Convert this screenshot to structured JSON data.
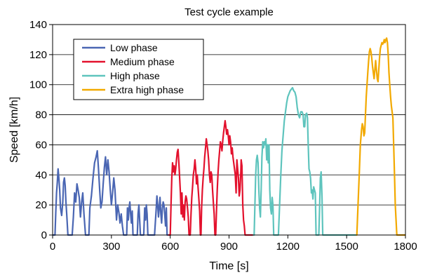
{
  "chart_data": {
    "type": "line",
    "title": "Test cycle example",
    "xlabel": "Time [s]",
    "ylabel": "Speed [km/h]",
    "xlim": [
      0,
      1800
    ],
    "ylim": [
      0,
      140
    ],
    "xticks": [
      0,
      300,
      600,
      900,
      1200,
      1500,
      1800
    ],
    "yticks": [
      0,
      20,
      40,
      60,
      80,
      100,
      120,
      140
    ],
    "grid": "horizontal",
    "legend_position": "top-left",
    "series": [
      {
        "name": "Low phase",
        "color": "#4a66b3",
        "points": [
          [
            0,
            0
          ],
          [
            12,
            0
          ],
          [
            16,
            15
          ],
          [
            20,
            28
          ],
          [
            24,
            35
          ],
          [
            28,
            44
          ],
          [
            32,
            38
          ],
          [
            36,
            30
          ],
          [
            40,
            18
          ],
          [
            46,
            13
          ],
          [
            52,
            22
          ],
          [
            56,
            35
          ],
          [
            60,
            38
          ],
          [
            64,
            33
          ],
          [
            68,
            22
          ],
          [
            72,
            14
          ],
          [
            78,
            0
          ],
          [
            100,
            0
          ],
          [
            106,
            12
          ],
          [
            112,
            28
          ],
          [
            118,
            22
          ],
          [
            124,
            34
          ],
          [
            130,
            30
          ],
          [
            136,
            25
          ],
          [
            142,
            12
          ],
          [
            148,
            22
          ],
          [
            154,
            28
          ],
          [
            160,
            14
          ],
          [
            168,
            0
          ],
          [
            185,
            0
          ],
          [
            190,
            18
          ],
          [
            198,
            26
          ],
          [
            206,
            38
          ],
          [
            214,
            48
          ],
          [
            222,
            52
          ],
          [
            228,
            56
          ],
          [
            234,
            44
          ],
          [
            240,
            30
          ],
          [
            246,
            18
          ],
          [
            252,
            22
          ],
          [
            258,
            34
          ],
          [
            264,
            45
          ],
          [
            270,
            52
          ],
          [
            276,
            40
          ],
          [
            282,
            50
          ],
          [
            288,
            42
          ],
          [
            294,
            30
          ],
          [
            300,
            20
          ],
          [
            306,
            28
          ],
          [
            312,
            38
          ],
          [
            318,
            30
          ],
          [
            322,
            20
          ],
          [
            326,
            10
          ],
          [
            332,
            20
          ],
          [
            338,
            15
          ],
          [
            344,
            8
          ],
          [
            350,
            14
          ],
          [
            356,
            6
          ],
          [
            362,
            0
          ],
          [
            378,
            0
          ],
          [
            382,
            18
          ],
          [
            386,
            10
          ],
          [
            390,
            18
          ],
          [
            394,
            22
          ],
          [
            398,
            14
          ],
          [
            402,
            8
          ],
          [
            406,
            16
          ],
          [
            410,
            0
          ],
          [
            432,
            0
          ],
          [
            436,
            14
          ],
          [
            440,
            20
          ],
          [
            444,
            10
          ],
          [
            448,
            0
          ],
          [
            465,
            0
          ],
          [
            470,
            18
          ],
          [
            474,
            10
          ],
          [
            478,
            20
          ],
          [
            482,
            14
          ],
          [
            486,
            0
          ],
          [
            520,
            0
          ],
          [
            524,
            8
          ],
          [
            528,
            16
          ],
          [
            532,
            26
          ],
          [
            536,
            20
          ],
          [
            540,
            12
          ],
          [
            544,
            18
          ],
          [
            548,
            25
          ],
          [
            552,
            14
          ],
          [
            556,
            8
          ],
          [
            560,
            18
          ],
          [
            564,
            22
          ],
          [
            568,
            20
          ],
          [
            572,
            14
          ],
          [
            576,
            6
          ],
          [
            580,
            18
          ],
          [
            584,
            0
          ],
          [
            589,
            0
          ]
        ]
      },
      {
        "name": "Medium phase",
        "color": "#e3112d",
        "points": [
          [
            589,
            0
          ],
          [
            600,
            0
          ],
          [
            604,
            20
          ],
          [
            608,
            38
          ],
          [
            612,
            48
          ],
          [
            616,
            42
          ],
          [
            620,
            46
          ],
          [
            624,
            40
          ],
          [
            628,
            44
          ],
          [
            632,
            50
          ],
          [
            636,
            55
          ],
          [
            640,
            57
          ],
          [
            644,
            48
          ],
          [
            648,
            38
          ],
          [
            652,
            28
          ],
          [
            656,
            14
          ],
          [
            660,
            28
          ],
          [
            664,
            12
          ],
          [
            668,
            20
          ],
          [
            672,
            10
          ],
          [
            676,
            22
          ],
          [
            680,
            26
          ],
          [
            684,
            24
          ],
          [
            688,
            18
          ],
          [
            692,
            12
          ],
          [
            696,
            0
          ],
          [
            702,
            0
          ],
          [
            706,
            14
          ],
          [
            710,
            25
          ],
          [
            714,
            32
          ],
          [
            718,
            40
          ],
          [
            722,
            44
          ],
          [
            726,
            50
          ],
          [
            730,
            44
          ],
          [
            734,
            34
          ],
          [
            738,
            40
          ],
          [
            742,
            32
          ],
          [
            746,
            24
          ],
          [
            750,
            16
          ],
          [
            754,
            0
          ],
          [
            757,
            0
          ],
          [
            760,
            18
          ],
          [
            764,
            30
          ],
          [
            768,
            38
          ],
          [
            772,
            44
          ],
          [
            776,
            52
          ],
          [
            780,
            58
          ],
          [
            784,
            64
          ],
          [
            788,
            60
          ],
          [
            792,
            56
          ],
          [
            796,
            50
          ],
          [
            800,
            40
          ],
          [
            804,
            35
          ],
          [
            808,
            42
          ],
          [
            812,
            40
          ],
          [
            816,
            30
          ],
          [
            820,
            22
          ],
          [
            824,
            14
          ],
          [
            828,
            0
          ],
          [
            832,
            0
          ],
          [
            836,
            16
          ],
          [
            840,
            30
          ],
          [
            844,
            42
          ],
          [
            848,
            50
          ],
          [
            852,
            56
          ],
          [
            856,
            62
          ],
          [
            860,
            60
          ],
          [
            864,
            56
          ],
          [
            868,
            63
          ],
          [
            872,
            68
          ],
          [
            876,
            72
          ],
          [
            880,
            76
          ],
          [
            884,
            72
          ],
          [
            888,
            67
          ],
          [
            892,
            70
          ],
          [
            896,
            66
          ],
          [
            900,
            60
          ],
          [
            904,
            66
          ],
          [
            908,
            62
          ],
          [
            912,
            54
          ],
          [
            916,
            58
          ],
          [
            920,
            52
          ],
          [
            924,
            48
          ],
          [
            928,
            44
          ],
          [
            932,
            40
          ],
          [
            936,
            28
          ],
          [
            940,
            50
          ],
          [
            944,
            44
          ],
          [
            948,
            38
          ],
          [
            952,
            26
          ],
          [
            956,
            30
          ],
          [
            960,
            42
          ],
          [
            962,
            50
          ],
          [
            966,
            46
          ],
          [
            970,
            20
          ],
          [
            974,
            10
          ],
          [
            978,
            6
          ],
          [
            982,
            0
          ],
          [
            1022,
            0
          ]
        ]
      },
      {
        "name": "High phase",
        "color": "#5ec4bd",
        "points": [
          [
            1022,
            0
          ],
          [
            1028,
            0
          ],
          [
            1032,
            20
          ],
          [
            1036,
            40
          ],
          [
            1040,
            50
          ],
          [
            1044,
            53
          ],
          [
            1048,
            48
          ],
          [
            1052,
            30
          ],
          [
            1056,
            18
          ],
          [
            1060,
            12
          ],
          [
            1064,
            30
          ],
          [
            1068,
            52
          ],
          [
            1072,
            62
          ],
          [
            1076,
            58
          ],
          [
            1080,
            62
          ],
          [
            1084,
            60
          ],
          [
            1088,
            64
          ],
          [
            1092,
            50
          ],
          [
            1096,
            60
          ],
          [
            1100,
            48
          ],
          [
            1104,
            60
          ],
          [
            1108,
            30
          ],
          [
            1112,
            18
          ],
          [
            1116,
            14
          ],
          [
            1120,
            25
          ],
          [
            1124,
            20
          ],
          [
            1128,
            0
          ],
          [
            1152,
            0
          ],
          [
            1158,
            20
          ],
          [
            1164,
            40
          ],
          [
            1170,
            56
          ],
          [
            1176,
            66
          ],
          [
            1182,
            76
          ],
          [
            1188,
            82
          ],
          [
            1194,
            88
          ],
          [
            1200,
            92
          ],
          [
            1206,
            94
          ],
          [
            1212,
            96
          ],
          [
            1218,
            97
          ],
          [
            1224,
            98
          ],
          [
            1230,
            96
          ],
          [
            1236,
            95
          ],
          [
            1242,
            92
          ],
          [
            1248,
            85
          ],
          [
            1254,
            80
          ],
          [
            1260,
            78
          ],
          [
            1266,
            82
          ],
          [
            1272,
            82
          ],
          [
            1278,
            80
          ],
          [
            1282,
            72
          ],
          [
            1286,
            72
          ],
          [
            1290,
            80
          ],
          [
            1296,
            81
          ],
          [
            1300,
            78
          ],
          [
            1304,
            60
          ],
          [
            1308,
            44
          ],
          [
            1312,
            42
          ],
          [
            1316,
            38
          ],
          [
            1320,
            28
          ],
          [
            1324,
            30
          ],
          [
            1328,
            24
          ],
          [
            1332,
            32
          ],
          [
            1336,
            30
          ],
          [
            1340,
            28
          ],
          [
            1344,
            0
          ],
          [
            1358,
            0
          ],
          [
            1362,
            18
          ],
          [
            1366,
            38
          ],
          [
            1370,
            42
          ],
          [
            1374,
            26
          ],
          [
            1378,
            0
          ],
          [
            1548,
            0
          ]
        ]
      },
      {
        "name": "Extra high phase",
        "color": "#f2a900",
        "points": [
          [
            1548,
            0
          ],
          [
            1552,
            0
          ],
          [
            1558,
            20
          ],
          [
            1564,
            40
          ],
          [
            1570,
            60
          ],
          [
            1576,
            70
          ],
          [
            1580,
            74
          ],
          [
            1584,
            72
          ],
          [
            1588,
            66
          ],
          [
            1592,
            68
          ],
          [
            1596,
            80
          ],
          [
            1600,
            92
          ],
          [
            1604,
            100
          ],
          [
            1608,
            108
          ],
          [
            1612,
            116
          ],
          [
            1616,
            122
          ],
          [
            1620,
            124
          ],
          [
            1624,
            122
          ],
          [
            1628,
            118
          ],
          [
            1632,
            112
          ],
          [
            1636,
            108
          ],
          [
            1640,
            104
          ],
          [
            1644,
            110
          ],
          [
            1648,
            116
          ],
          [
            1652,
            110
          ],
          [
            1656,
            104
          ],
          [
            1660,
            102
          ],
          [
            1664,
            110
          ],
          [
            1668,
            118
          ],
          [
            1672,
            124
          ],
          [
            1676,
            126
          ],
          [
            1680,
            128
          ],
          [
            1684,
            127
          ],
          [
            1688,
            128
          ],
          [
            1692,
            130
          ],
          [
            1696,
            128
          ],
          [
            1700,
            130
          ],
          [
            1704,
            131
          ],
          [
            1708,
            128
          ],
          [
            1712,
            120
          ],
          [
            1716,
            108
          ],
          [
            1720,
            100
          ],
          [
            1724,
            92
          ],
          [
            1728,
            86
          ],
          [
            1732,
            82
          ],
          [
            1736,
            78
          ],
          [
            1740,
            60
          ],
          [
            1744,
            40
          ],
          [
            1748,
            20
          ],
          [
            1752,
            10
          ],
          [
            1756,
            0
          ],
          [
            1800,
            0
          ]
        ]
      }
    ]
  }
}
